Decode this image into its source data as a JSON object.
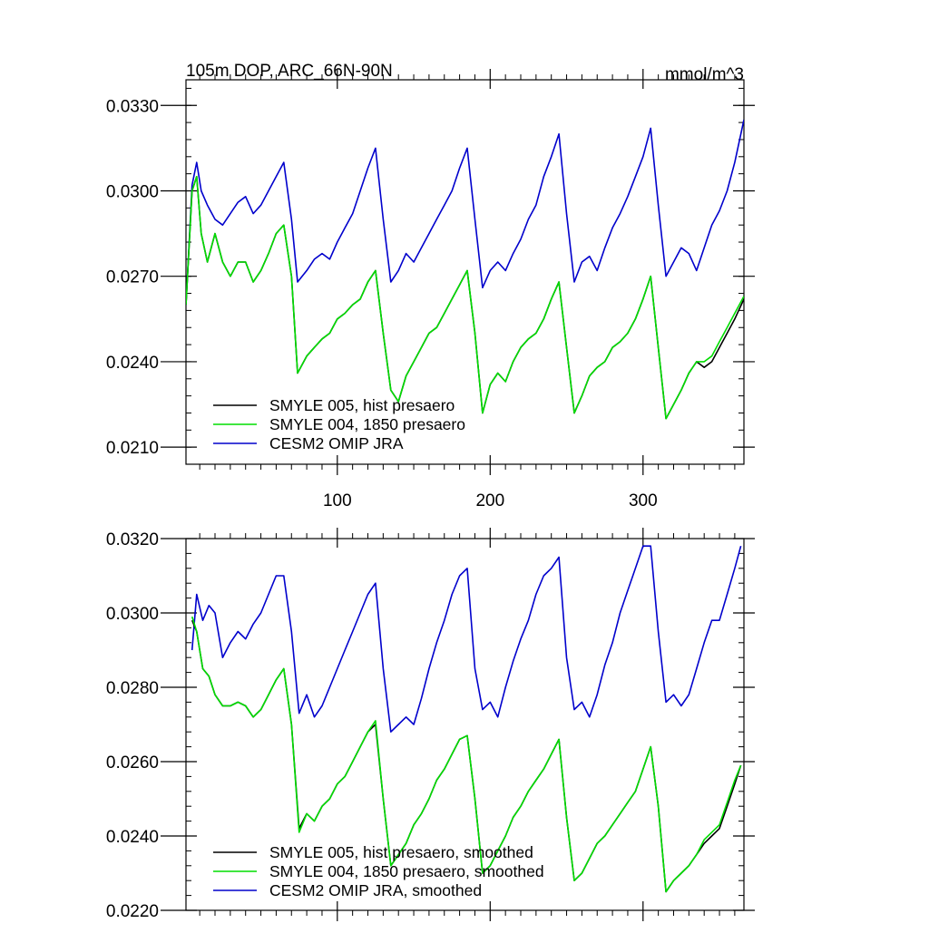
{
  "chart_data": [
    {
      "type": "line",
      "title": "105m DOP, ARC_66N-90N",
      "units": "mmol/m^3",
      "xlim": [
        1,
        366
      ],
      "ylim": [
        0.0204,
        0.0339
      ],
      "xticks": [
        100,
        200,
        300
      ],
      "xtick_labels": [
        "100",
        "200",
        "300"
      ],
      "yticks": [
        0.021,
        0.024,
        0.027,
        0.03,
        0.033
      ],
      "ytick_labels": [
        "0.0210",
        "0.0240",
        "0.0270",
        "0.0300",
        "0.0330"
      ],
      "legend_position": "bottom-left",
      "series": [
        {
          "name": "SMYLE 005, hist presaero",
          "color": "#000000",
          "x": [
            1,
            5,
            8,
            11,
            15,
            20,
            25,
            30,
            35,
            40,
            45,
            50,
            55,
            60,
            65,
            70,
            74,
            80,
            85,
            90,
            95,
            100,
            105,
            110,
            115,
            120,
            125,
            130,
            135,
            140,
            145,
            150,
            155,
            160,
            165,
            170,
            175,
            180,
            185,
            190,
            195,
            200,
            205,
            210,
            215,
            220,
            225,
            230,
            235,
            240,
            245,
            250,
            255,
            260,
            265,
            270,
            275,
            280,
            285,
            290,
            295,
            300,
            305,
            310,
            315,
            320,
            325,
            330,
            335,
            340,
            345,
            350,
            355,
            360,
            366
          ],
          "y": [
            0.026,
            0.03,
            0.0305,
            0.0285,
            0.0275,
            0.0285,
            0.0275,
            0.027,
            0.0275,
            0.0275,
            0.0268,
            0.0272,
            0.0278,
            0.0285,
            0.0288,
            0.027,
            0.0236,
            0.0242,
            0.0245,
            0.0248,
            0.025,
            0.0255,
            0.0257,
            0.026,
            0.0262,
            0.0268,
            0.0272,
            0.025,
            0.023,
            0.0226,
            0.0235,
            0.024,
            0.0245,
            0.025,
            0.0252,
            0.0257,
            0.0262,
            0.0267,
            0.0272,
            0.025,
            0.0222,
            0.0232,
            0.0236,
            0.0233,
            0.024,
            0.0245,
            0.0248,
            0.025,
            0.0255,
            0.0262,
            0.0268,
            0.0245,
            0.0222,
            0.0228,
            0.0235,
            0.0238,
            0.024,
            0.0245,
            0.0247,
            0.025,
            0.0255,
            0.0262,
            0.027,
            0.0245,
            0.022,
            0.0225,
            0.023,
            0.0236,
            0.024,
            0.0238,
            0.024,
            0.0245,
            0.025,
            0.0255,
            0.0262
          ]
        },
        {
          "name": "SMYLE 004, 1850 presaero",
          "color": "#00dd00",
          "x": [
            1,
            5,
            8,
            11,
            15,
            20,
            25,
            30,
            35,
            40,
            45,
            50,
            55,
            60,
            65,
            70,
            74,
            80,
            85,
            90,
            95,
            100,
            105,
            110,
            115,
            120,
            125,
            130,
            135,
            140,
            145,
            150,
            155,
            160,
            165,
            170,
            175,
            180,
            185,
            190,
            195,
            200,
            205,
            210,
            215,
            220,
            225,
            230,
            235,
            240,
            245,
            250,
            255,
            260,
            265,
            270,
            275,
            280,
            285,
            290,
            295,
            300,
            305,
            310,
            315,
            320,
            325,
            330,
            335,
            340,
            345,
            350,
            355,
            360,
            366
          ],
          "y": [
            0.026,
            0.03,
            0.0305,
            0.0285,
            0.0275,
            0.0285,
            0.0275,
            0.027,
            0.0275,
            0.0275,
            0.0268,
            0.0272,
            0.0278,
            0.0285,
            0.0288,
            0.027,
            0.0236,
            0.0242,
            0.0245,
            0.0248,
            0.025,
            0.0255,
            0.0257,
            0.026,
            0.0262,
            0.0268,
            0.0272,
            0.025,
            0.023,
            0.0226,
            0.0235,
            0.024,
            0.0245,
            0.025,
            0.0252,
            0.0257,
            0.0262,
            0.0267,
            0.0272,
            0.025,
            0.0222,
            0.0232,
            0.0236,
            0.0233,
            0.024,
            0.0245,
            0.0248,
            0.025,
            0.0255,
            0.0262,
            0.0268,
            0.0245,
            0.0222,
            0.0228,
            0.0235,
            0.0238,
            0.024,
            0.0245,
            0.0247,
            0.025,
            0.0255,
            0.0262,
            0.027,
            0.0245,
            0.022,
            0.0225,
            0.023,
            0.0236,
            0.024,
            0.024,
            0.0242,
            0.0247,
            0.0252,
            0.0257,
            0.0263
          ]
        },
        {
          "name": "CESM2 OMIP JRA",
          "color": "#0000cc",
          "x": [
            1,
            5,
            8,
            11,
            15,
            20,
            25,
            30,
            35,
            40,
            45,
            50,
            55,
            60,
            65,
            70,
            74,
            80,
            85,
            90,
            95,
            100,
            105,
            110,
            115,
            120,
            125,
            130,
            135,
            140,
            145,
            150,
            155,
            160,
            165,
            170,
            175,
            180,
            185,
            190,
            195,
            200,
            205,
            210,
            215,
            220,
            225,
            230,
            235,
            240,
            245,
            250,
            255,
            260,
            265,
            270,
            275,
            280,
            285,
            290,
            295,
            300,
            305,
            310,
            315,
            320,
            325,
            330,
            335,
            340,
            345,
            350,
            355,
            360,
            366
          ],
          "y": [
            0.026,
            0.0302,
            0.031,
            0.03,
            0.0295,
            0.029,
            0.0288,
            0.0292,
            0.0296,
            0.0298,
            0.0292,
            0.0295,
            0.03,
            0.0305,
            0.031,
            0.029,
            0.0268,
            0.0272,
            0.0276,
            0.0278,
            0.0276,
            0.0282,
            0.0287,
            0.0292,
            0.03,
            0.0308,
            0.0315,
            0.029,
            0.0268,
            0.0272,
            0.0278,
            0.0275,
            0.028,
            0.0285,
            0.029,
            0.0295,
            0.03,
            0.0308,
            0.0315,
            0.029,
            0.0266,
            0.0272,
            0.0275,
            0.0272,
            0.0278,
            0.0283,
            0.029,
            0.0295,
            0.0305,
            0.0312,
            0.032,
            0.0292,
            0.0268,
            0.0275,
            0.0277,
            0.0272,
            0.028,
            0.0287,
            0.0292,
            0.0298,
            0.0305,
            0.0312,
            0.0322,
            0.0295,
            0.027,
            0.0275,
            0.028,
            0.0278,
            0.0272,
            0.028,
            0.0288,
            0.0293,
            0.03,
            0.031,
            0.0325
          ]
        }
      ]
    },
    {
      "type": "line",
      "title": "",
      "xlim": [
        1,
        366
      ],
      "ylim": [
        0.022,
        0.032
      ],
      "xticks": [
        100,
        200,
        300
      ],
      "xtick_labels": [],
      "yticks": [
        0.022,
        0.024,
        0.026,
        0.028,
        0.03,
        0.032
      ],
      "ytick_labels": [
        "0.0220",
        "0.0240",
        "0.0260",
        "0.0280",
        "0.0300",
        "0.0320"
      ],
      "legend_position": "bottom-left",
      "series": [
        {
          "name": "SMYLE 005, hist presaero, smoothed",
          "color": "#000000",
          "x": [
            5,
            8,
            12,
            16,
            20,
            25,
            30,
            35,
            40,
            45,
            50,
            55,
            60,
            65,
            70,
            75,
            80,
            85,
            90,
            95,
            100,
            105,
            110,
            115,
            120,
            125,
            130,
            135,
            140,
            145,
            150,
            155,
            160,
            165,
            170,
            175,
            180,
            185,
            190,
            195,
            200,
            205,
            210,
            215,
            220,
            225,
            230,
            235,
            240,
            245,
            250,
            255,
            260,
            265,
            270,
            275,
            280,
            285,
            290,
            295,
            300,
            305,
            310,
            315,
            320,
            325,
            330,
            335,
            340,
            345,
            350,
            355,
            360,
            364
          ],
          "y": [
            0.0298,
            0.0295,
            0.0285,
            0.0283,
            0.0278,
            0.0275,
            0.0275,
            0.0276,
            0.0275,
            0.0272,
            0.0274,
            0.0278,
            0.0282,
            0.0285,
            0.027,
            0.0242,
            0.0246,
            0.0244,
            0.0248,
            0.025,
            0.0254,
            0.0256,
            0.026,
            0.0264,
            0.0268,
            0.027,
            0.025,
            0.0232,
            0.0235,
            0.0238,
            0.0243,
            0.0246,
            0.025,
            0.0255,
            0.0258,
            0.0262,
            0.0266,
            0.0267,
            0.025,
            0.023,
            0.0232,
            0.0236,
            0.024,
            0.0245,
            0.0248,
            0.0252,
            0.0255,
            0.0258,
            0.0262,
            0.0266,
            0.0245,
            0.0228,
            0.023,
            0.0234,
            0.0238,
            0.024,
            0.0243,
            0.0246,
            0.0249,
            0.0252,
            0.0258,
            0.0264,
            0.0248,
            0.0225,
            0.0228,
            0.023,
            0.0232,
            0.0235,
            0.0238,
            0.024,
            0.0242,
            0.0248,
            0.0254,
            0.0259
          ]
        },
        {
          "name": "SMYLE 004, 1850 presaero, smoothed",
          "color": "#00dd00",
          "x": [
            5,
            8,
            12,
            16,
            20,
            25,
            30,
            35,
            40,
            45,
            50,
            55,
            60,
            65,
            70,
            75,
            80,
            85,
            90,
            95,
            100,
            105,
            110,
            115,
            120,
            125,
            130,
            135,
            140,
            145,
            150,
            155,
            160,
            165,
            170,
            175,
            180,
            185,
            190,
            195,
            200,
            205,
            210,
            215,
            220,
            225,
            230,
            235,
            240,
            245,
            250,
            255,
            260,
            265,
            270,
            275,
            280,
            285,
            290,
            295,
            300,
            305,
            310,
            315,
            320,
            325,
            330,
            335,
            340,
            345,
            350,
            355,
            360,
            364
          ],
          "y": [
            0.0299,
            0.0295,
            0.0285,
            0.0283,
            0.0278,
            0.0275,
            0.0275,
            0.0276,
            0.0275,
            0.0272,
            0.0274,
            0.0278,
            0.0282,
            0.0285,
            0.027,
            0.0241,
            0.0246,
            0.0244,
            0.0248,
            0.025,
            0.0254,
            0.0256,
            0.026,
            0.0264,
            0.0268,
            0.0271,
            0.025,
            0.0232,
            0.0235,
            0.0238,
            0.0243,
            0.0246,
            0.025,
            0.0255,
            0.0258,
            0.0262,
            0.0266,
            0.0267,
            0.025,
            0.023,
            0.0232,
            0.0236,
            0.024,
            0.0245,
            0.0248,
            0.0252,
            0.0255,
            0.0258,
            0.0262,
            0.0266,
            0.0245,
            0.0228,
            0.023,
            0.0234,
            0.0238,
            0.024,
            0.0243,
            0.0246,
            0.0249,
            0.0252,
            0.0258,
            0.0264,
            0.0248,
            0.0225,
            0.0228,
            0.023,
            0.0232,
            0.0235,
            0.0239,
            0.0241,
            0.0243,
            0.0249,
            0.0255,
            0.0259
          ]
        },
        {
          "name": "CESM2 OMIP JRA, smoothed",
          "color": "#0000cc",
          "x": [
            5,
            8,
            12,
            16,
            20,
            25,
            30,
            35,
            40,
            45,
            50,
            55,
            60,
            65,
            70,
            75,
            80,
            85,
            90,
            95,
            100,
            105,
            110,
            115,
            120,
            125,
            130,
            135,
            140,
            145,
            150,
            155,
            160,
            165,
            170,
            175,
            180,
            185,
            190,
            195,
            200,
            205,
            210,
            215,
            220,
            225,
            230,
            235,
            240,
            245,
            250,
            255,
            260,
            265,
            270,
            275,
            280,
            285,
            290,
            295,
            300,
            305,
            310,
            315,
            320,
            325,
            330,
            335,
            340,
            345,
            350,
            355,
            360,
            364
          ],
          "y": [
            0.029,
            0.0305,
            0.0298,
            0.0302,
            0.03,
            0.0288,
            0.0292,
            0.0295,
            0.0293,
            0.0297,
            0.03,
            0.0305,
            0.031,
            0.031,
            0.0295,
            0.0273,
            0.0278,
            0.0272,
            0.0275,
            0.028,
            0.0285,
            0.029,
            0.0295,
            0.03,
            0.0305,
            0.0308,
            0.0285,
            0.0268,
            0.027,
            0.0272,
            0.027,
            0.0277,
            0.0285,
            0.0292,
            0.0298,
            0.0305,
            0.031,
            0.0312,
            0.0285,
            0.0274,
            0.0276,
            0.0272,
            0.028,
            0.0287,
            0.0293,
            0.0298,
            0.0305,
            0.031,
            0.0312,
            0.0315,
            0.0288,
            0.0274,
            0.0276,
            0.0272,
            0.0278,
            0.0286,
            0.0292,
            0.03,
            0.0306,
            0.0312,
            0.0318,
            0.0318,
            0.0295,
            0.0276,
            0.0278,
            0.0275,
            0.0278,
            0.0285,
            0.0292,
            0.0298,
            0.0298,
            0.0305,
            0.0312,
            0.0318
          ]
        }
      ]
    }
  ]
}
